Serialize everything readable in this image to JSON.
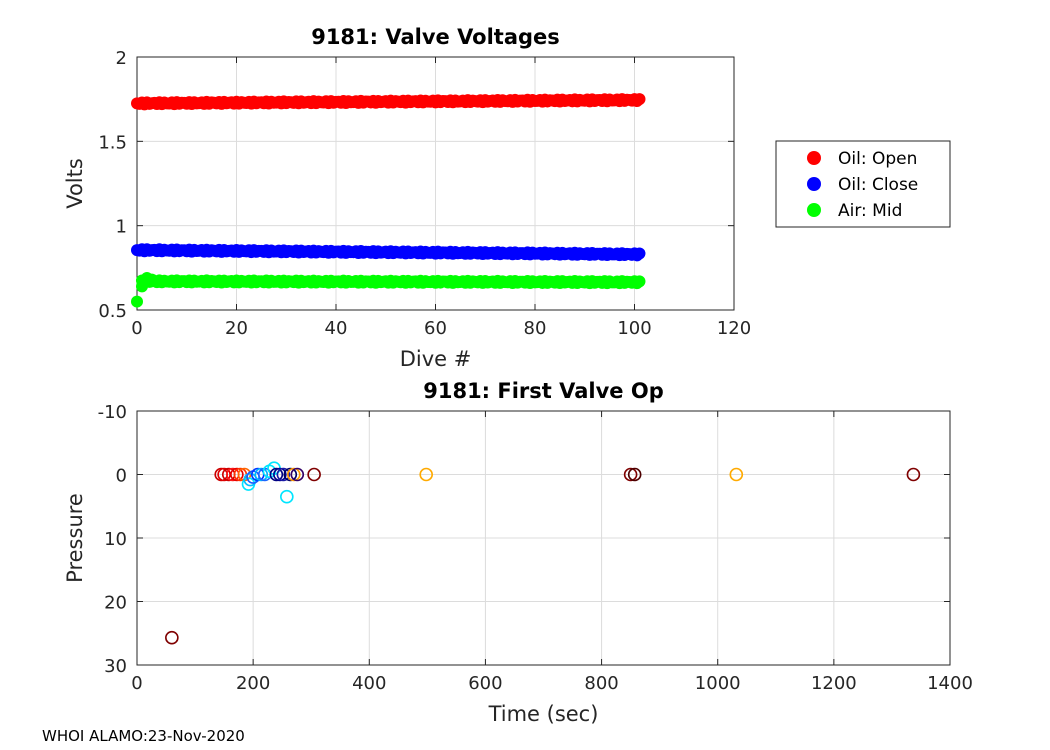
{
  "footer": "WHOI ALAMO:23-Nov-2020",
  "chart_data": [
    {
      "type": "scatter",
      "title": "9181: Valve Voltages",
      "xlabel": "Dive #",
      "ylabel": "Volts",
      "xlim": [
        0,
        120
      ],
      "ylim": [
        0.5,
        2
      ],
      "xticks": [
        0,
        20,
        40,
        60,
        80,
        100,
        120
      ],
      "xtick_labels": [
        "0",
        "20",
        "40",
        "60",
        "80",
        "100",
        "120"
      ],
      "yticks": [
        0.5,
        1,
        1.5,
        2
      ],
      "ytick_labels": [
        "0.5",
        "1",
        "1.5",
        "2"
      ],
      "grid": true,
      "legend_position": "outside-right",
      "legend": [
        "Oil: Open",
        "Oil: Close",
        "Air: Mid"
      ],
      "series": [
        {
          "name": "Oil: Open",
          "color": "#ff0000",
          "x_start": 0,
          "x_end": 101,
          "y_start": 1.725,
          "y_end": 1.745
        },
        {
          "name": "Oil: Close",
          "color": "#0000ff",
          "x_start": 0,
          "x_end": 101,
          "y_start": 0.855,
          "y_end": 0.83
        },
        {
          "name": "Air: Mid",
          "color": "#00ff00",
          "x_start": 1,
          "x_end": 101,
          "y_start": 0.67,
          "y_end": 0.665,
          "extra_points": [
            [
              0,
              0.55
            ],
            [
              1,
              0.64
            ],
            [
              2,
              0.69
            ],
            [
              3,
              0.68
            ]
          ]
        }
      ]
    },
    {
      "type": "scatter",
      "title": "9181: First Valve Op",
      "xlabel": "Time (sec)",
      "ylabel": "Pressure",
      "xlim": [
        0,
        1400
      ],
      "ylim": [
        -10,
        30
      ],
      "y_reversed": true,
      "xticks": [
        0,
        200,
        400,
        600,
        800,
        1000,
        1200,
        1400
      ],
      "xtick_labels": [
        "0",
        "200",
        "400",
        "600",
        "800",
        "1000",
        "1200",
        "1400"
      ],
      "yticks": [
        -10,
        0,
        10,
        20,
        30
      ],
      "ytick_labels": [
        "-10",
        "0",
        "10",
        "20",
        "30"
      ],
      "grid": true,
      "marker": "open-circle",
      "points": [
        {
          "x": 60,
          "y": 25.7,
          "color": "#7f0000"
        },
        {
          "x": 145,
          "y": 0,
          "color": "#cc0000"
        },
        {
          "x": 150,
          "y": 0,
          "color": "#e00000"
        },
        {
          "x": 158,
          "y": 0,
          "color": "#cc0000"
        },
        {
          "x": 165,
          "y": 0,
          "color": "#ff1a1a"
        },
        {
          "x": 172,
          "y": 0,
          "color": "#e60000"
        },
        {
          "x": 178,
          "y": 0,
          "color": "#ff3300"
        },
        {
          "x": 185,
          "y": 0,
          "color": "#ff6600"
        },
        {
          "x": 192,
          "y": 1.5,
          "color": "#00e5ff"
        },
        {
          "x": 195,
          "y": 0.8,
          "color": "#00bfff"
        },
        {
          "x": 200,
          "y": 0.4,
          "color": "#1a5cff"
        },
        {
          "x": 208,
          "y": 0,
          "color": "#0033ff"
        },
        {
          "x": 214,
          "y": 0,
          "color": "#00b3ff"
        },
        {
          "x": 220,
          "y": 0,
          "color": "#1a66ff"
        },
        {
          "x": 228,
          "y": -0.5,
          "color": "#00e5ff"
        },
        {
          "x": 236,
          "y": -1.0,
          "color": "#00e5ff"
        },
        {
          "x": 240,
          "y": 0,
          "color": "#000080"
        },
        {
          "x": 246,
          "y": 0,
          "color": "#00008b"
        },
        {
          "x": 252,
          "y": 0,
          "color": "#1a1aa6"
        },
        {
          "x": 258,
          "y": 3.5,
          "color": "#00e5ff"
        },
        {
          "x": 264,
          "y": 0,
          "color": "#000066"
        },
        {
          "x": 270,
          "y": 0,
          "color": "#ff9900"
        },
        {
          "x": 276,
          "y": 0,
          "color": "#330066"
        },
        {
          "x": 305,
          "y": 0,
          "color": "#7f0000"
        },
        {
          "x": 498,
          "y": 0,
          "color": "#ffaa00"
        },
        {
          "x": 850,
          "y": 0,
          "color": "#7f0000"
        },
        {
          "x": 857,
          "y": 0,
          "color": "#4d0000"
        },
        {
          "x": 1032,
          "y": 0,
          "color": "#ffaa00"
        },
        {
          "x": 1337,
          "y": 0,
          "color": "#7f0000"
        }
      ]
    }
  ]
}
